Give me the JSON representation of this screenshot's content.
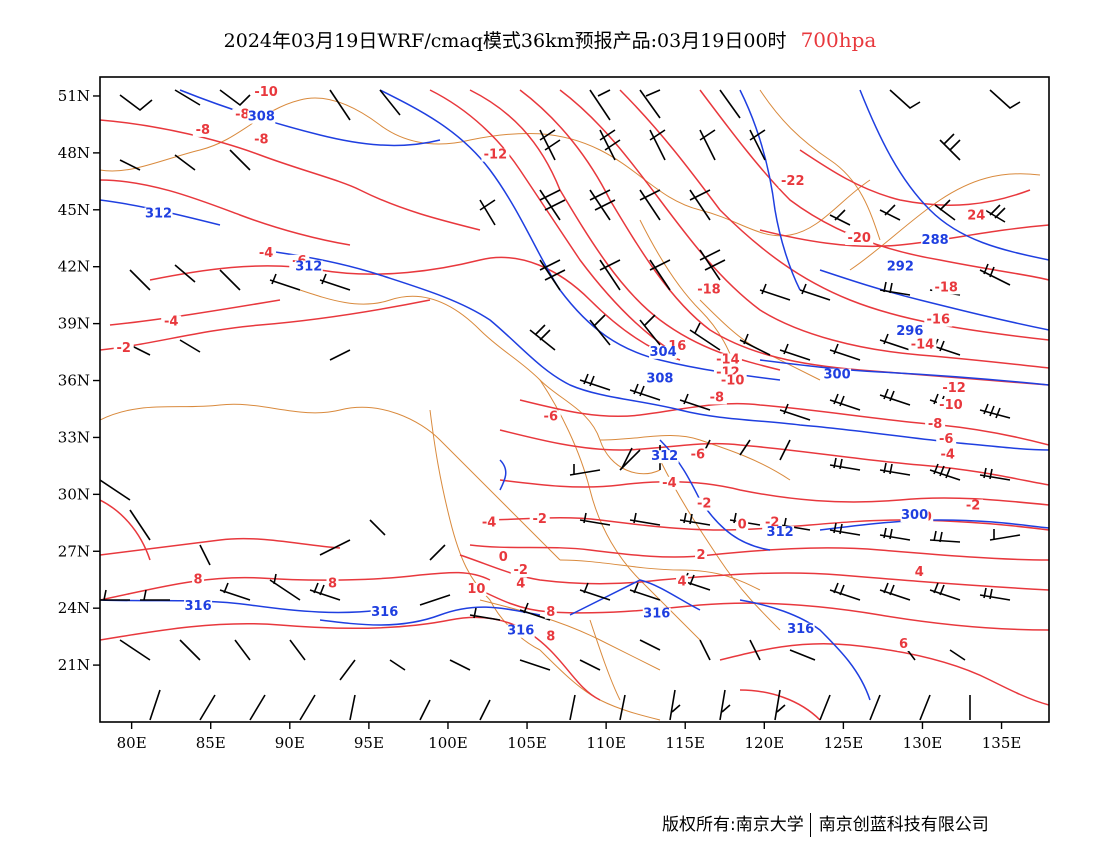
{
  "header": {
    "title": "2024年03月19日WRF/cmaq模式36km预报产品:03月19日00时",
    "level": "700hpa"
  },
  "colors": {
    "temperature": "#e8383d",
    "geopotential": "#1f3fe0",
    "boundary": "#d98a3d",
    "wind": "#000000"
  },
  "map": {
    "lon_range": [
      78,
      138
    ],
    "lat_range": [
      18,
      52
    ],
    "lon_ticks": [
      {
        "value": 80,
        "label": "80E"
      },
      {
        "value": 85,
        "label": "85E"
      },
      {
        "value": 90,
        "label": "90E"
      },
      {
        "value": 95,
        "label": "95E"
      },
      {
        "value": 100,
        "label": "100E"
      },
      {
        "value": 105,
        "label": "105E"
      },
      {
        "value": 110,
        "label": "110E"
      },
      {
        "value": 115,
        "label": "115E"
      },
      {
        "value": 120,
        "label": "120E"
      },
      {
        "value": 125,
        "label": "125E"
      },
      {
        "value": 130,
        "label": "130E"
      },
      {
        "value": 135,
        "label": "135E"
      }
    ],
    "lat_ticks": [
      {
        "value": 21,
        "label": "21N"
      },
      {
        "value": 24,
        "label": "24N"
      },
      {
        "value": 27,
        "label": "27N"
      },
      {
        "value": 30,
        "label": "30N"
      },
      {
        "value": 33,
        "label": "33N"
      },
      {
        "value": 36,
        "label": "36N"
      },
      {
        "value": 39,
        "label": "39N"
      },
      {
        "value": 42,
        "label": "42N"
      },
      {
        "value": 45,
        "label": "45N"
      },
      {
        "value": 48,
        "label": "48N"
      },
      {
        "value": 51,
        "label": "51N"
      }
    ],
    "temperature_labels": [
      {
        "text": "-10",
        "lon": 88.5,
        "lat": 51.0
      },
      {
        "text": "-8",
        "lon": 84.5,
        "lat": 49.0
      },
      {
        "text": "-8",
        "lon": 87.0,
        "lat": 49.8
      },
      {
        "text": "-8",
        "lon": 88.2,
        "lat": 48.5
      },
      {
        "text": "-12",
        "lon": 103.0,
        "lat": 47.7
      },
      {
        "text": "-22",
        "lon": 121.8,
        "lat": 46.3
      },
      {
        "text": "-20",
        "lon": 126.0,
        "lat": 43.3
      },
      {
        "text": "24",
        "lon": 133.4,
        "lat": 44.5
      },
      {
        "text": "-18",
        "lon": 116.5,
        "lat": 40.6
      },
      {
        "text": "-18",
        "lon": 131.5,
        "lat": 40.7
      },
      {
        "text": "-16",
        "lon": 131.0,
        "lat": 39.0
      },
      {
        "text": "-14",
        "lon": 130.0,
        "lat": 37.7
      },
      {
        "text": "-6",
        "lon": 90.6,
        "lat": 42.1
      },
      {
        "text": "-4",
        "lon": 88.5,
        "lat": 42.5
      },
      {
        "text": "-4",
        "lon": 82.5,
        "lat": 38.9
      },
      {
        "text": "-2",
        "lon": 79.5,
        "lat": 37.5
      },
      {
        "text": "16",
        "lon": 114.5,
        "lat": 37.6
      },
      {
        "text": "-14",
        "lon": 117.7,
        "lat": 36.9
      },
      {
        "text": "-12",
        "lon": 117.7,
        "lat": 36.2
      },
      {
        "text": "-10",
        "lon": 118.0,
        "lat": 35.8
      },
      {
        "text": "-8",
        "lon": 117.0,
        "lat": 34.9
      },
      {
        "text": "-6",
        "lon": 106.5,
        "lat": 33.9
      },
      {
        "text": "-12",
        "lon": 132.0,
        "lat": 35.4
      },
      {
        "text": "-10",
        "lon": 131.8,
        "lat": 34.5
      },
      {
        "text": "-8",
        "lon": 130.8,
        "lat": 33.5
      },
      {
        "text": "-6",
        "lon": 131.5,
        "lat": 32.7
      },
      {
        "text": "-4",
        "lon": 131.6,
        "lat": 31.9
      },
      {
        "text": "-6",
        "lon": 115.8,
        "lat": 31.9
      },
      {
        "text": "-4",
        "lon": 114.0,
        "lat": 30.4
      },
      {
        "text": "-2",
        "lon": 116.2,
        "lat": 29.3
      },
      {
        "text": "-2",
        "lon": 133.2,
        "lat": 29.2
      },
      {
        "text": "0",
        "lon": 130.3,
        "lat": 28.6
      },
      {
        "text": "-4",
        "lon": 102.6,
        "lat": 28.3
      },
      {
        "text": "-2",
        "lon": 105.8,
        "lat": 28.5
      },
      {
        "text": "0",
        "lon": 118.6,
        "lat": 28.2
      },
      {
        "text": "-2",
        "lon": 120.5,
        "lat": 28.3
      },
      {
        "text": "0",
        "lon": 103.5,
        "lat": 26.5
      },
      {
        "text": "-2",
        "lon": 104.6,
        "lat": 25.8
      },
      {
        "text": "2",
        "lon": 116.0,
        "lat": 26.6
      },
      {
        "text": "4",
        "lon": 129.8,
        "lat": 25.7
      },
      {
        "text": "8",
        "lon": 84.2,
        "lat": 25.3
      },
      {
        "text": "8",
        "lon": 92.7,
        "lat": 25.1
      },
      {
        "text": "10",
        "lon": 101.8,
        "lat": 24.8
      },
      {
        "text": "4",
        "lon": 104.6,
        "lat": 25.1
      },
      {
        "text": "4",
        "lon": 114.8,
        "lat": 25.2
      },
      {
        "text": "8",
        "lon": 106.5,
        "lat": 23.6
      },
      {
        "text": "8",
        "lon": 106.5,
        "lat": 22.3
      },
      {
        "text": "6",
        "lon": 128.8,
        "lat": 21.9
      }
    ],
    "geopotential_labels": [
      {
        "text": "308",
        "lon": 88.2,
        "lat": 49.7
      },
      {
        "text": "312",
        "lon": 81.7,
        "lat": 44.6
      },
      {
        "text": "312",
        "lon": 91.2,
        "lat": 41.8
      },
      {
        "text": "288",
        "lon": 130.8,
        "lat": 43.2
      },
      {
        "text": "292",
        "lon": 128.6,
        "lat": 41.8
      },
      {
        "text": "296",
        "lon": 129.2,
        "lat": 38.4
      },
      {
        "text": "304",
        "lon": 113.6,
        "lat": 37.3
      },
      {
        "text": "308",
        "lon": 113.4,
        "lat": 35.9
      },
      {
        "text": "300",
        "lon": 124.6,
        "lat": 36.1
      },
      {
        "text": "312",
        "lon": 113.7,
        "lat": 31.8
      },
      {
        "text": "312",
        "lon": 121.0,
        "lat": 27.8
      },
      {
        "text": "300",
        "lon": 129.5,
        "lat": 28.7
      },
      {
        "text": "316",
        "lon": 84.2,
        "lat": 23.9
      },
      {
        "text": "316",
        "lon": 96.0,
        "lat": 23.6
      },
      {
        "text": "316",
        "lon": 104.6,
        "lat": 22.6
      },
      {
        "text": "316",
        "lon": 113.2,
        "lat": 23.5
      },
      {
        "text": "316",
        "lon": 122.3,
        "lat": 22.7
      }
    ]
  },
  "footer": {
    "copyright": "版权所有:南京大学",
    "company": "南京创蓝科技有限公司"
  }
}
